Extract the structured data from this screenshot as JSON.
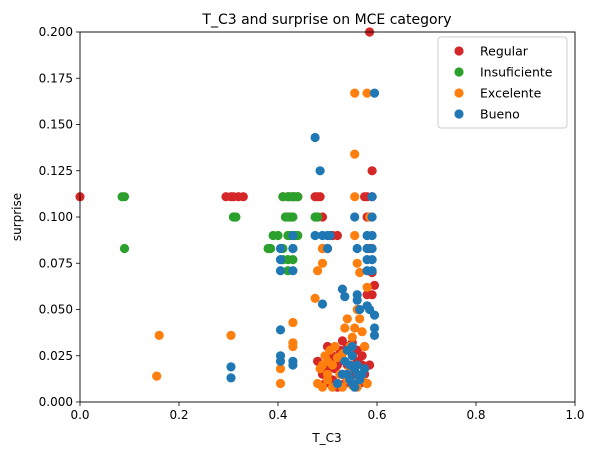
{
  "chart_data": {
    "type": "scatter",
    "title": "T_C3 and surprise on MCE category",
    "xlabel": "T_C3",
    "ylabel": "surprise",
    "xlim": [
      0,
      1
    ],
    "ylim": [
      0,
      0.2
    ],
    "xticks": [
      "0.0",
      "0.2",
      "0.4",
      "0.6",
      "0.8",
      "1.0"
    ],
    "yticks": [
      "0.000",
      "0.025",
      "0.050",
      "0.075",
      "0.100",
      "0.125",
      "0.150",
      "0.175",
      "0.200"
    ],
    "grid": false,
    "legend_position": "top-right",
    "series": [
      {
        "name": "Regular",
        "color": "#d62728",
        "points": [
          [
            0.0,
            0.111
          ],
          [
            0.295,
            0.111
          ],
          [
            0.305,
            0.111
          ],
          [
            0.31,
            0.111
          ],
          [
            0.32,
            0.111
          ],
          [
            0.33,
            0.111
          ],
          [
            0.41,
            0.111
          ],
          [
            0.42,
            0.111
          ],
          [
            0.43,
            0.111
          ],
          [
            0.44,
            0.111
          ],
          [
            0.475,
            0.111
          ],
          [
            0.48,
            0.111
          ],
          [
            0.485,
            0.111
          ],
          [
            0.48,
            0.1
          ],
          [
            0.49,
            0.1
          ],
          [
            0.49,
            0.083
          ],
          [
            0.5,
            0.083
          ],
          [
            0.51,
            0.09
          ],
          [
            0.52,
            0.09
          ],
          [
            0.575,
            0.111
          ],
          [
            0.58,
            0.111
          ],
          [
            0.59,
            0.111
          ],
          [
            0.59,
            0.125
          ],
          [
            0.585,
            0.2
          ],
          [
            0.58,
            0.1
          ],
          [
            0.585,
            0.083
          ],
          [
            0.59,
            0.07
          ],
          [
            0.595,
            0.063
          ],
          [
            0.58,
            0.058
          ],
          [
            0.59,
            0.058
          ],
          [
            0.5,
            0.03
          ],
          [
            0.51,
            0.025
          ],
          [
            0.52,
            0.02
          ],
          [
            0.53,
            0.033
          ],
          [
            0.54,
            0.03
          ],
          [
            0.55,
            0.025
          ],
          [
            0.56,
            0.028
          ],
          [
            0.57,
            0.02
          ],
          [
            0.575,
            0.015
          ],
          [
            0.58,
            0.01
          ],
          [
            0.49,
            0.015
          ],
          [
            0.495,
            0.01
          ],
          [
            0.5,
            0.018
          ],
          [
            0.51,
            0.012
          ],
          [
            0.52,
            0.008
          ],
          [
            0.545,
            0.012
          ],
          [
            0.555,
            0.015
          ],
          [
            0.565,
            0.01
          ],
          [
            0.57,
            0.025
          ],
          [
            0.53,
            0.015
          ],
          [
            0.48,
            0.022
          ],
          [
            0.54,
            0.02
          ],
          [
            0.55,
            0.032
          ],
          [
            0.525,
            0.028
          ],
          [
            0.56,
            0.022
          ],
          [
            0.575,
            0.03
          ],
          [
            0.585,
            0.02
          ],
          [
            0.505,
            0.022
          ],
          [
            0.515,
            0.018
          ],
          [
            0.535,
            0.01
          ]
        ]
      },
      {
        "name": "Insuficiente",
        "color": "#2ca02c",
        "points": [
          [
            0.085,
            0.111
          ],
          [
            0.09,
            0.111
          ],
          [
            0.09,
            0.083
          ],
          [
            0.31,
            0.1
          ],
          [
            0.315,
            0.1
          ],
          [
            0.38,
            0.083
          ],
          [
            0.385,
            0.083
          ],
          [
            0.39,
            0.09
          ],
          [
            0.4,
            0.09
          ],
          [
            0.41,
            0.111
          ],
          [
            0.415,
            0.1
          ],
          [
            0.42,
            0.1
          ],
          [
            0.425,
            0.1
          ],
          [
            0.43,
            0.1
          ],
          [
            0.42,
            0.111
          ],
          [
            0.425,
            0.111
          ],
          [
            0.43,
            0.111
          ],
          [
            0.435,
            0.111
          ],
          [
            0.44,
            0.111
          ],
          [
            0.41,
            0.083
          ],
          [
            0.42,
            0.09
          ],
          [
            0.425,
            0.09
          ],
          [
            0.43,
            0.083
          ],
          [
            0.435,
            0.09
          ],
          [
            0.44,
            0.09
          ],
          [
            0.41,
            0.077
          ],
          [
            0.42,
            0.077
          ],
          [
            0.43,
            0.077
          ],
          [
            0.42,
            0.071
          ],
          [
            0.475,
            0.1
          ],
          [
            0.48,
            0.1
          ]
        ]
      },
      {
        "name": "Excelente",
        "color": "#ff7f0e",
        "points": [
          [
            0.16,
            0.036
          ],
          [
            0.155,
            0.014
          ],
          [
            0.305,
            0.036
          ],
          [
            0.405,
            0.018
          ],
          [
            0.405,
            0.01
          ],
          [
            0.43,
            0.043
          ],
          [
            0.43,
            0.032
          ],
          [
            0.43,
            0.03
          ],
          [
            0.475,
            0.056
          ],
          [
            0.48,
            0.071
          ],
          [
            0.49,
            0.075
          ],
          [
            0.49,
            0.083
          ],
          [
            0.555,
            0.167
          ],
          [
            0.555,
            0.134
          ],
          [
            0.555,
            0.111
          ],
          [
            0.58,
            0.167
          ],
          [
            0.585,
            0.1
          ],
          [
            0.555,
            0.09
          ],
          [
            0.56,
            0.075
          ],
          [
            0.565,
            0.07
          ],
          [
            0.58,
            0.083
          ],
          [
            0.58,
            0.062
          ],
          [
            0.48,
            0.01
          ],
          [
            0.49,
            0.008
          ],
          [
            0.5,
            0.012
          ],
          [
            0.51,
            0.008
          ],
          [
            0.52,
            0.01
          ],
          [
            0.53,
            0.008
          ],
          [
            0.54,
            0.012
          ],
          [
            0.55,
            0.009
          ],
          [
            0.56,
            0.008
          ],
          [
            0.57,
            0.012
          ],
          [
            0.58,
            0.01
          ],
          [
            0.49,
            0.02
          ],
          [
            0.495,
            0.025
          ],
          [
            0.5,
            0.022
          ],
          [
            0.51,
            0.02
          ],
          [
            0.52,
            0.024
          ],
          [
            0.53,
            0.026
          ],
          [
            0.535,
            0.04
          ],
          [
            0.54,
            0.045
          ],
          [
            0.545,
            0.03
          ],
          [
            0.55,
            0.035
          ],
          [
            0.555,
            0.04
          ],
          [
            0.56,
            0.05
          ],
          [
            0.565,
            0.045
          ],
          [
            0.57,
            0.038
          ],
          [
            0.575,
            0.03
          ],
          [
            0.5,
            0.015
          ],
          [
            0.485,
            0.018
          ],
          [
            0.505,
            0.028
          ],
          [
            0.515,
            0.03
          ],
          [
            0.525,
            0.015
          ],
          [
            0.545,
            0.018
          ]
        ]
      },
      {
        "name": "Bueno",
        "color": "#1f77b4",
        "points": [
          [
            0.305,
            0.019
          ],
          [
            0.305,
            0.013
          ],
          [
            0.405,
            0.039
          ],
          [
            0.405,
            0.025
          ],
          [
            0.405,
            0.022
          ],
          [
            0.43,
            0.022
          ],
          [
            0.43,
            0.02
          ],
          [
            0.475,
            0.143
          ],
          [
            0.485,
            0.125
          ],
          [
            0.405,
            0.083
          ],
          [
            0.405,
            0.077
          ],
          [
            0.405,
            0.071
          ],
          [
            0.43,
            0.083
          ],
          [
            0.43,
            0.071
          ],
          [
            0.43,
            0.09
          ],
          [
            0.475,
            0.09
          ],
          [
            0.49,
            0.09
          ],
          [
            0.5,
            0.083
          ],
          [
            0.5,
            0.09
          ],
          [
            0.505,
            0.09
          ],
          [
            0.49,
            0.053
          ],
          [
            0.555,
            0.1
          ],
          [
            0.56,
            0.083
          ],
          [
            0.595,
            0.167
          ],
          [
            0.58,
            0.09
          ],
          [
            0.58,
            0.083
          ],
          [
            0.58,
            0.077
          ],
          [
            0.58,
            0.071
          ],
          [
            0.59,
            0.09
          ],
          [
            0.59,
            0.083
          ],
          [
            0.59,
            0.077
          ],
          [
            0.59,
            0.071
          ],
          [
            0.59,
            0.1
          ],
          [
            0.59,
            0.111
          ],
          [
            0.595,
            0.047
          ],
          [
            0.595,
            0.04
          ],
          [
            0.595,
            0.036
          ],
          [
            0.585,
            0.05
          ],
          [
            0.58,
            0.052
          ],
          [
            0.53,
            0.061
          ],
          [
            0.535,
            0.057
          ],
          [
            0.56,
            0.058
          ],
          [
            0.56,
            0.055
          ],
          [
            0.565,
            0.05
          ],
          [
            0.54,
            0.015
          ],
          [
            0.545,
            0.012
          ],
          [
            0.55,
            0.01
          ],
          [
            0.555,
            0.008
          ],
          [
            0.545,
            0.02
          ],
          [
            0.55,
            0.025
          ],
          [
            0.555,
            0.018
          ],
          [
            0.56,
            0.015
          ],
          [
            0.565,
            0.012
          ],
          [
            0.54,
            0.028
          ],
          [
            0.535,
            0.022
          ],
          [
            0.55,
            0.03
          ],
          [
            0.53,
            0.015
          ],
          [
            0.52,
            0.01
          ],
          [
            0.56,
            0.02
          ],
          [
            0.57,
            0.015
          ],
          [
            0.575,
            0.018
          ]
        ]
      }
    ]
  }
}
